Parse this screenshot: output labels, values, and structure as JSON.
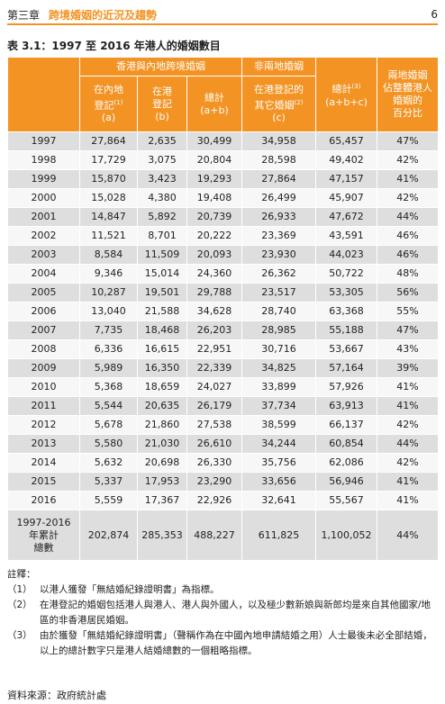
{
  "header": {
    "chapter": "第三章",
    "chapter_title": "跨境婚姻的近況及趨勢",
    "page": "6"
  },
  "table": {
    "title": "表 3.1：1997 至 2016 年港人的婚姻數目",
    "group_headers": [
      "香港與內地跨境婚姻",
      "非兩地婚姻"
    ],
    "columns": [
      {
        "lines": [
          "在內地",
          "登記"
        ],
        "sup": "(1)",
        "key": "(a)"
      },
      {
        "lines": [
          "在港",
          "登記"
        ],
        "key": "(b)"
      },
      {
        "lines": [
          "總計"
        ],
        "key": "(a+b)"
      },
      {
        "lines": [
          "在港登記的",
          "其它婚姻"
        ],
        "sup": "(2)",
        "key": "(c)"
      },
      {
        "lines": [
          "總計"
        ],
        "sup": "(3)",
        "key": "(a+b+c)"
      },
      {
        "lines": [
          "兩地婚姻",
          "佔整體港人",
          "婚姻的",
          "百分比"
        ]
      }
    ],
    "rows": [
      [
        "1997",
        "27,864",
        "2,635",
        "30,499",
        "34,958",
        "65,457",
        "47%"
      ],
      [
        "1998",
        "17,729",
        "3,075",
        "20,804",
        "28,598",
        "49,402",
        "42%"
      ],
      [
        "1999",
        "15,870",
        "3,423",
        "19,293",
        "27,864",
        "47,157",
        "41%"
      ],
      [
        "2000",
        "15,028",
        "4,380",
        "19,408",
        "26,499",
        "45,907",
        "42%"
      ],
      [
        "2001",
        "14,847",
        "5,892",
        "20,739",
        "26,933",
        "47,672",
        "44%"
      ],
      [
        "2002",
        "11,521",
        "8,701",
        "20,222",
        "23,369",
        "43,591",
        "46%"
      ],
      [
        "2003",
        "8,584",
        "11,509",
        "20,093",
        "23,930",
        "44,023",
        "46%"
      ],
      [
        "2004",
        "9,346",
        "15,014",
        "24,360",
        "26,362",
        "50,722",
        "48%"
      ],
      [
        "2005",
        "10,287",
        "19,501",
        "29,788",
        "23,517",
        "53,305",
        "56%"
      ],
      [
        "2006",
        "13,040",
        "21,588",
        "34,628",
        "28,740",
        "63,368",
        "55%"
      ],
      [
        "2007",
        "7,735",
        "18,468",
        "26,203",
        "28,985",
        "55,188",
        "47%"
      ],
      [
        "2008",
        "6,336",
        "16,615",
        "22,951",
        "30,716",
        "53,667",
        "43%"
      ],
      [
        "2009",
        "5,989",
        "16,350",
        "22,339",
        "34,825",
        "57,164",
        "39%"
      ],
      [
        "2010",
        "5,368",
        "18,659",
        "24,027",
        "33,899",
        "57,926",
        "41%"
      ],
      [
        "2011",
        "5,544",
        "20,635",
        "26,179",
        "37,734",
        "63,913",
        "41%"
      ],
      [
        "2012",
        "5,678",
        "21,860",
        "27,538",
        "38,599",
        "66,137",
        "42%"
      ],
      [
        "2013",
        "5,580",
        "21,030",
        "26,610",
        "34,244",
        "60,854",
        "44%"
      ],
      [
        "2014",
        "5,632",
        "20,698",
        "26,330",
        "35,756",
        "62,086",
        "42%"
      ],
      [
        "2015",
        "5,337",
        "17,953",
        "23,290",
        "33,656",
        "56,946",
        "41%"
      ],
      [
        "2016",
        "5,559",
        "17,367",
        "22,926",
        "32,641",
        "55,567",
        "41%"
      ]
    ],
    "total_row": {
      "label": [
        "1997-2016",
        "年累計",
        "總數"
      ],
      "values": [
        "202,874",
        "285,353",
        "488,227",
        "611,825",
        "1,100,052",
        "44%"
      ]
    }
  },
  "notes": {
    "heading": "註釋：",
    "items": [
      {
        "label": "（1）",
        "text": "以港人獲發「無結婚紀錄證明書」為指標。"
      },
      {
        "label": "（2）",
        "text": "在港登記的婚姻包括港人與港人、港人與外國人，以及極少數新娘與新郎均是來自其他國家/地區的非香港居民婚姻。"
      },
      {
        "label": "（3）",
        "text": "由於獲發「無結婚紀錄證明書」（聲稱作為在中國內地申請結婚之用）人士最後未必全部結婚，以上的總計數字只是港人結婚總數的一個粗略指標。"
      }
    ]
  },
  "source": "資料來源：政府統計處"
}
